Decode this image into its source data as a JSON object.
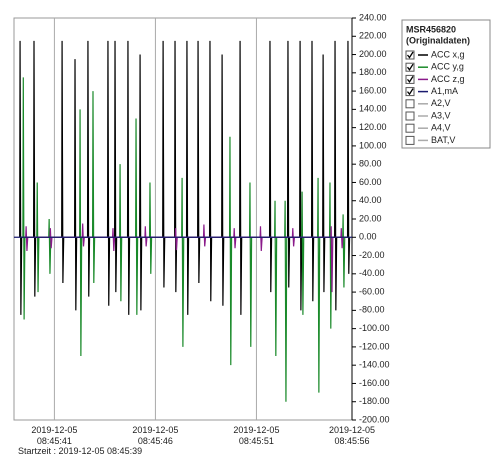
{
  "chart_data": {
    "type": "line",
    "xlim": [
      0,
      16.73
    ],
    "xticks": [
      {
        "value": 2,
        "label": "2019-12-05 08:45:41"
      },
      {
        "value": 7,
        "label": "2019-12-05 08:45:46"
      },
      {
        "value": 12,
        "label": "2019-12-05 08:45:51"
      },
      {
        "value": 16.73,
        "label": "2019-12-05 08:45:56"
      }
    ],
    "ylim": [
      -200,
      240
    ],
    "yticks": [
      {
        "value": 240,
        "label": "240.00"
      },
      {
        "value": 220,
        "label": "220.00"
      },
      {
        "value": 200,
        "label": "200.00"
      },
      {
        "value": 180,
        "label": "180.00"
      },
      {
        "value": 160,
        "label": "160.00"
      },
      {
        "value": 140,
        "label": "140.00"
      },
      {
        "value": 120,
        "label": "120.00"
      },
      {
        "value": 100,
        "label": "100.00"
      },
      {
        "value": 80,
        "label": "80.00"
      },
      {
        "value": 60,
        "label": "60.00"
      },
      {
        "value": 40,
        "label": "40.00"
      },
      {
        "value": 20,
        "label": "20.00"
      },
      {
        "value": 0,
        "label": "0.00"
      },
      {
        "value": -20,
        "label": "-20.00"
      },
      {
        "value": -40,
        "label": "-40.00"
      },
      {
        "value": -60,
        "label": "-60.00"
      },
      {
        "value": -80,
        "label": "-80.00"
      },
      {
        "value": -100,
        "label": "-100.00"
      },
      {
        "value": -120,
        "label": "-120.00"
      },
      {
        "value": -140,
        "label": "-140.00"
      },
      {
        "value": -160,
        "label": "-160.00"
      },
      {
        "value": -180,
        "label": "-180.00"
      },
      {
        "value": -200,
        "label": "-200.00"
      }
    ],
    "xgrid": true,
    "legend_title": "MSR456820",
    "legend_subtitle": "(Originaldaten)",
    "footer": "Startzeit : 2019-12-05 08:45:39",
    "series": [
      {
        "name": "ACC x,g",
        "color": "#000000",
        "checked": true,
        "x": [
          0.28,
          0.3,
          0.34,
          0.38,
          0.97,
          0.99,
          1.03,
          1.07,
          2.36,
          2.38,
          2.42,
          2.46,
          3.0,
          3.02,
          3.06,
          3.1,
          3.64,
          3.66,
          3.7,
          3.74,
          4.63,
          4.65,
          4.69,
          4.73,
          4.98,
          5.0,
          5.04,
          5.08,
          5.62,
          5.64,
          5.68,
          5.72,
          6.22,
          6.24,
          6.28,
          6.32,
          7.36,
          7.38,
          7.42,
          7.46,
          7.95,
          7.97,
          8.01,
          8.05,
          8.54,
          8.56,
          8.6,
          8.64,
          9.09,
          9.11,
          9.15,
          9.19,
          9.68,
          9.7,
          9.74,
          9.78,
          10.28,
          10.3,
          10.34,
          10.38,
          11.17,
          11.19,
          11.23,
          11.27,
          12.65,
          12.67,
          12.71,
          12.75,
          13.54,
          13.56,
          13.6,
          13.64,
          14.14,
          14.16,
          14.2,
          14.24,
          14.73,
          14.75,
          14.79,
          14.83,
          15.28,
          15.3,
          15.34,
          15.38,
          15.87,
          15.89,
          15.93,
          15.97,
          16.51,
          16.53,
          16.57,
          16.61
        ],
        "values": [
          0,
          215,
          -85,
          0,
          0,
          215,
          -65,
          0,
          0,
          215,
          -50,
          0,
          0,
          195,
          -80,
          0,
          0,
          215,
          -65,
          0,
          0,
          215,
          -75,
          0,
          0,
          215,
          -60,
          0,
          0,
          215,
          -85,
          0,
          0,
          200,
          -80,
          0,
          0,
          215,
          -55,
          0,
          0,
          215,
          -60,
          0,
          0,
          215,
          -85,
          0,
          0,
          215,
          -50,
          0,
          0,
          215,
          -70,
          0,
          0,
          200,
          -75,
          0,
          0,
          215,
          -85,
          0,
          0,
          215,
          -60,
          0,
          0,
          215,
          -55,
          0,
          0,
          215,
          -80,
          0,
          0,
          215,
          -70,
          0,
          0,
          200,
          -60,
          0,
          0,
          215,
          -80,
          0,
          0,
          215,
          -40,
          0
        ]
      },
      {
        "name": "ACC y,g",
        "color": "#1a8a2a",
        "checked": true,
        "x": [
          0.44,
          0.46,
          0.5,
          0.54,
          1.13,
          1.15,
          1.19,
          1.23,
          1.72,
          1.74,
          1.78,
          1.82,
          3.25,
          3.27,
          3.31,
          3.35,
          3.89,
          3.91,
          3.95,
          3.99,
          5.23,
          5.25,
          5.29,
          5.33,
          6.02,
          6.04,
          6.08,
          6.12,
          6.71,
          6.73,
          6.77,
          6.81,
          8.3,
          8.32,
          8.36,
          8.4,
          10.67,
          10.69,
          10.73,
          10.77,
          11.66,
          11.68,
          11.72,
          11.76,
          12.9,
          12.92,
          12.96,
          13.0,
          13.4,
          13.42,
          13.46,
          13.5,
          14.24,
          14.26,
          14.3,
          14.34,
          15.03,
          15.05,
          15.09,
          15.13,
          15.62,
          15.64,
          15.68,
          15.72,
          16.27,
          16.29,
          16.33,
          16.37
        ],
        "values": [
          0,
          175,
          -90,
          0,
          0,
          60,
          -60,
          0,
          0,
          20,
          -40,
          0,
          0,
          140,
          -130,
          0,
          0,
          160,
          -50,
          0,
          0,
          80,
          -70,
          0,
          0,
          130,
          -85,
          0,
          0,
          60,
          -40,
          0,
          0,
          65,
          -120,
          0,
          0,
          110,
          -140,
          0,
          0,
          60,
          -120,
          0,
          0,
          40,
          -130,
          0,
          0,
          40,
          -180,
          0,
          0,
          50,
          -85,
          0,
          0,
          65,
          -170,
          0,
          0,
          60,
          -100,
          0,
          0,
          25,
          -55,
          0
        ]
      },
      {
        "name": "ACC z,g",
        "color": "#8a1a8a",
        "checked": true,
        "x": [
          0.58,
          0.6,
          0.64,
          0.68,
          1.78,
          1.8,
          1.84,
          1.88,
          3.38,
          3.4,
          3.44,
          3.48,
          4.88,
          4.9,
          4.94,
          4.98,
          6.48,
          6.5,
          6.54,
          6.58,
          7.98,
          8.0,
          8.04,
          8.08,
          9.38,
          9.4,
          9.44,
          9.48,
          10.88,
          10.9,
          10.94,
          10.98,
          12.18,
          12.2,
          12.24,
          12.28,
          13.78,
          13.8,
          13.84,
          13.88,
          15.68,
          15.7,
          15.74,
          15.78,
          16.18,
          16.2,
          16.24,
          16.28
        ],
        "values": [
          0,
          12,
          -15,
          0,
          0,
          10,
          -12,
          0,
          0,
          15,
          -10,
          0,
          0,
          10,
          -15,
          0,
          0,
          12,
          -10,
          0,
          0,
          10,
          -14,
          0,
          0,
          14,
          -10,
          0,
          0,
          10,
          -12,
          0,
          0,
          12,
          -15,
          0,
          0,
          10,
          -10,
          0,
          0,
          12,
          -60,
          0,
          0,
          10,
          -12,
          0
        ]
      },
      {
        "name": "A1,mA",
        "color": "#1a1a6e",
        "checked": true,
        "x": [
          0,
          16.73
        ],
        "values": [
          0,
          0
        ]
      },
      {
        "name": "A2,V",
        "color": "#aaaaaa",
        "checked": false
      },
      {
        "name": "A3,V",
        "color": "#aaaaaa",
        "checked": false
      },
      {
        "name": "A4,V",
        "color": "#aaaaaa",
        "checked": false
      },
      {
        "name": "BAT,V",
        "color": "#aaaaaa",
        "checked": false
      }
    ]
  }
}
